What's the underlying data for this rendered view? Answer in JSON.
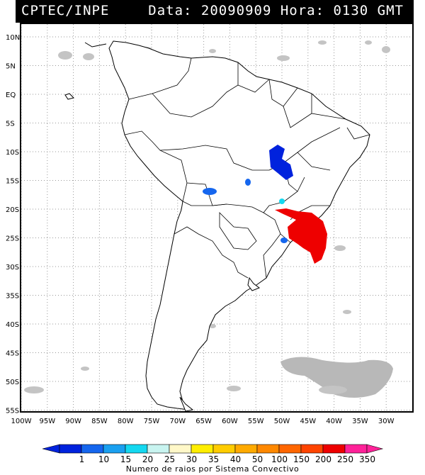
{
  "header": {
    "source": "CPTEC/INPE",
    "datetime": "Data: 20090909  Hora: 0130 GMT"
  },
  "lat_ticks": [
    "10N",
    "5N",
    "EQ",
    "5S",
    "10S",
    "15S",
    "20S",
    "25S",
    "30S",
    "35S",
    "40S",
    "45S",
    "50S",
    "55S"
  ],
  "lon_ticks": [
    "100W",
    "95W",
    "90W",
    "85W",
    "80W",
    "75W",
    "70W",
    "65W",
    "60W",
    "55W",
    "50W",
    "45W",
    "40W",
    "35W",
    "30W"
  ],
  "colorbar": {
    "labels": [
      "1",
      "10",
      "15",
      "20",
      "25",
      "30",
      "35",
      "40",
      "50",
      "100",
      "150",
      "200",
      "250",
      "350"
    ],
    "colors": [
      "#0022dd",
      "#1566ee",
      "#1aa0f0",
      "#14d8f0",
      "#c8f4f0",
      "#fff8c8",
      "#ffee00",
      "#ffcc00",
      "#ffaa00",
      "#ff8800",
      "#ff6600",
      "#ff4400",
      "#ee0000",
      "#ff2299"
    ],
    "caption": "Numero de raios por Sistema Convectivo"
  }
}
